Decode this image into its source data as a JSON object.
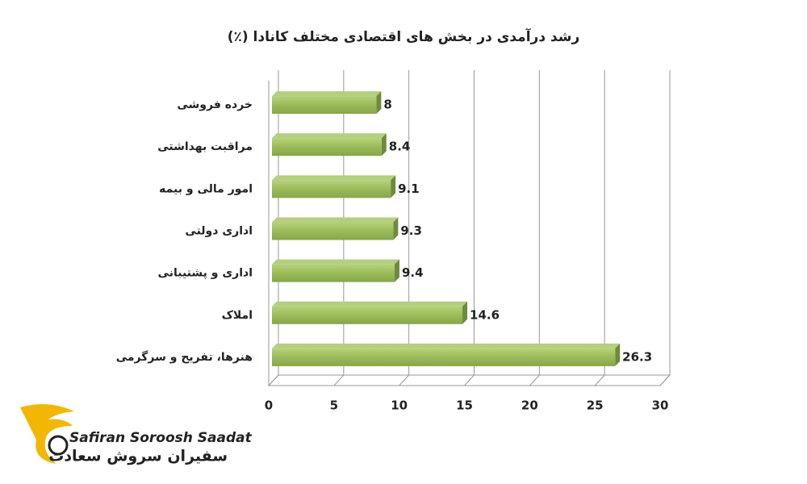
{
  "chart_data": {
    "type": "bar",
    "orientation": "horizontal",
    "title": "رشد درآمدی در بخش های اقتصادی مختلف کانادا (٪)",
    "categories": [
      "خرده فروشی",
      "مراقبت بهداشتی",
      "امور مالی و بیمه",
      "اداری دولتی",
      "اداری و پشتیبانی",
      "املاک",
      "هنرها، تفریح و سرگرمی"
    ],
    "values": [
      8,
      8.4,
      9.1,
      9.3,
      9.4,
      14.6,
      26.3
    ],
    "color": "#9bbb59",
    "xlim": [
      0,
      30
    ],
    "xticks": [
      0,
      5,
      10,
      15,
      20,
      25,
      30
    ],
    "grid": true
  },
  "logo": {
    "latin": "Safiran Soroosh Saadat",
    "persian": "سفیران سروش سعادت"
  }
}
